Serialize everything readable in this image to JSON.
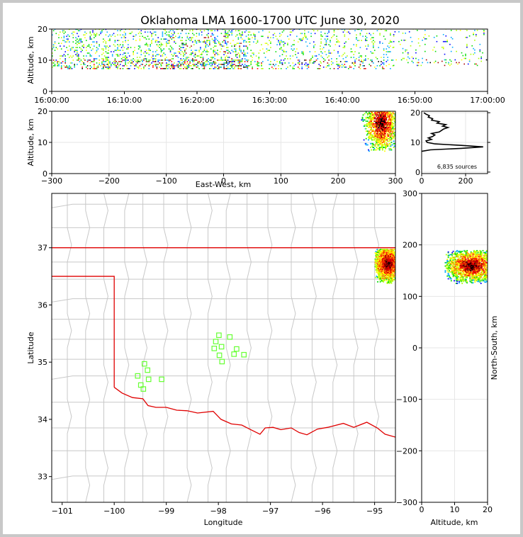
{
  "title": "Oklahoma LMA 1600-1700 UTC June 30, 2020",
  "colors": {
    "state_border": "#e00000",
    "county_lines": "#c8c8c8",
    "station": "#66ff33",
    "density_scale": [
      "#0000ff",
      "#00aaff",
      "#00dd00",
      "#aaff00",
      "#ffff00",
      "#ff8800",
      "#ff0000",
      "#aa0000",
      "#000000"
    ],
    "grid": "#e6e6e6"
  },
  "chart_data": [
    {
      "id": "altitude-time",
      "type": "heatmap",
      "ylabel": "Altitude, km",
      "ylim": [
        0,
        20
      ],
      "yticks": [
        "0",
        "10",
        "20"
      ],
      "xticks": [
        "16:00:00",
        "16:10:00",
        "16:20:00",
        "16:30:00",
        "16:40:00",
        "16:50:00",
        "17:00:00"
      ],
      "x_range_minutes": [
        0,
        60
      ],
      "activity": [
        {
          "minute_start": 0,
          "minute_end": 15,
          "alt_low": 7,
          "alt_high": 20,
          "density": "high"
        },
        {
          "minute_start": 15,
          "minute_end": 27,
          "alt_low": 7,
          "alt_high": 20,
          "density": "very-high"
        },
        {
          "minute_start": 27,
          "minute_end": 37,
          "alt_low": 7,
          "alt_high": 20,
          "density": "medium"
        },
        {
          "minute_start": 37,
          "minute_end": 47,
          "alt_low": 7,
          "alt_high": 20,
          "density": "medium"
        },
        {
          "minute_start": 47,
          "minute_end": 60,
          "alt_low": 8,
          "alt_high": 20,
          "density": "low"
        }
      ]
    },
    {
      "id": "altitude-eastwest",
      "type": "heatmap",
      "xlabel": "East-West, km",
      "ylabel": "Altitude, km",
      "xlim": [
        -300,
        300
      ],
      "ylim": [
        0,
        20
      ],
      "xticks": [
        "−300",
        "−200",
        "−100",
        "0",
        "100",
        "200",
        "300"
      ],
      "yticks": [
        "0",
        "10",
        "20"
      ],
      "cluster": {
        "x_range_km": [
          240,
          300
        ],
        "alt_range_km": [
          7,
          20
        ],
        "core_x_km": 275,
        "core_alt_km": 16
      }
    },
    {
      "id": "altitude-histogram",
      "type": "line",
      "xlim": [
        0,
        300
      ],
      "ylim": [
        0,
        20
      ],
      "xticks": [
        "0",
        "200"
      ],
      "yticks": [
        "0",
        "10",
        "20"
      ],
      "annotation": "6,835 sources",
      "profile": [
        {
          "alt": 7.0,
          "count": 0
        },
        {
          "alt": 7.5,
          "count": 40
        },
        {
          "alt": 8.0,
          "count": 180
        },
        {
          "alt": 8.5,
          "count": 280
        },
        {
          "alt": 9.0,
          "count": 180
        },
        {
          "alt": 9.5,
          "count": 60
        },
        {
          "alt": 10.0,
          "count": 25
        },
        {
          "alt": 10.5,
          "count": 20
        },
        {
          "alt": 11.0,
          "count": 45
        },
        {
          "alt": 11.5,
          "count": 30
        },
        {
          "alt": 12.0,
          "count": 50
        },
        {
          "alt": 12.5,
          "count": 60
        },
        {
          "alt": 13.0,
          "count": 45
        },
        {
          "alt": 13.5,
          "count": 80
        },
        {
          "alt": 14.0,
          "count": 90
        },
        {
          "alt": 14.5,
          "count": 100
        },
        {
          "alt": 15.0,
          "count": 120
        },
        {
          "alt": 15.5,
          "count": 95
        },
        {
          "alt": 16.0,
          "count": 110
        },
        {
          "alt": 16.5,
          "count": 70
        },
        {
          "alt": 17.0,
          "count": 80
        },
        {
          "alt": 17.5,
          "count": 45
        },
        {
          "alt": 18.0,
          "count": 50
        },
        {
          "alt": 18.5,
          "count": 30
        },
        {
          "alt": 19.0,
          "count": 35
        },
        {
          "alt": 19.5,
          "count": 20
        },
        {
          "alt": 20.0,
          "count": 10
        }
      ]
    },
    {
      "id": "plan-view-map",
      "type": "scatter",
      "xlabel": "Longitude",
      "ylabel": "Latitude",
      "xlim": [
        -101.2,
        -94.6
      ],
      "ylim": [
        32.55,
        37.95
      ],
      "xticks": [
        {
          "v": -101,
          "t": "−101"
        },
        {
          "v": -100,
          "t": "−100"
        },
        {
          "v": -99,
          "t": "−99"
        },
        {
          "v": -98,
          "t": "−98"
        },
        {
          "v": -97,
          "t": "−97"
        },
        {
          "v": -96,
          "t": "−96"
        },
        {
          "v": -95,
          "t": "−95"
        }
      ],
      "yticks": [
        {
          "v": 33,
          "t": "33"
        },
        {
          "v": 34,
          "t": "34"
        },
        {
          "v": 35,
          "t": "35"
        },
        {
          "v": 36,
          "t": "36"
        },
        {
          "v": 37,
          "t": "37"
        }
      ],
      "stations": [
        {
          "lon": -99.42,
          "lat": 34.97
        },
        {
          "lon": -99.36,
          "lat": 34.86
        },
        {
          "lon": -99.55,
          "lat": 34.76
        },
        {
          "lon": -99.34,
          "lat": 34.7
        },
        {
          "lon": -99.49,
          "lat": 34.6
        },
        {
          "lon": -99.44,
          "lat": 34.53
        },
        {
          "lon": -99.09,
          "lat": 34.7
        },
        {
          "lon": -97.99,
          "lat": 35.47
        },
        {
          "lon": -97.78,
          "lat": 35.44
        },
        {
          "lon": -98.05,
          "lat": 35.36
        },
        {
          "lon": -97.94,
          "lat": 35.27
        },
        {
          "lon": -98.08,
          "lat": 35.24
        },
        {
          "lon": -97.65,
          "lat": 35.23
        },
        {
          "lon": -97.98,
          "lat": 35.12
        },
        {
          "lon": -97.7,
          "lat": 35.14
        },
        {
          "lon": -97.51,
          "lat": 35.13
        },
        {
          "lon": -97.93,
          "lat": 35.01
        }
      ],
      "cluster": {
        "lon_range": [
          -95.0,
          -94.6
        ],
        "lat_range": [
          36.38,
          36.97
        ],
        "core_lon": -94.75,
        "core_lat": 36.72
      }
    },
    {
      "id": "northsouth-altitude",
      "type": "heatmap",
      "xlabel": "Altitude, km",
      "ylabel": "North-South, km",
      "xlim": [
        0,
        20
      ],
      "ylim": [
        -300,
        300
      ],
      "xticks": [
        "0",
        "10",
        "20"
      ],
      "yticks": [
        "300",
        "200",
        "100",
        "0",
        "−100",
        "−200",
        "−300"
      ],
      "cluster": {
        "alt_range_km": [
          7,
          20
        ],
        "ns_range_km": [
          125,
          190
        ],
        "core_alt_km": 15,
        "core_ns_km": 160
      }
    }
  ]
}
